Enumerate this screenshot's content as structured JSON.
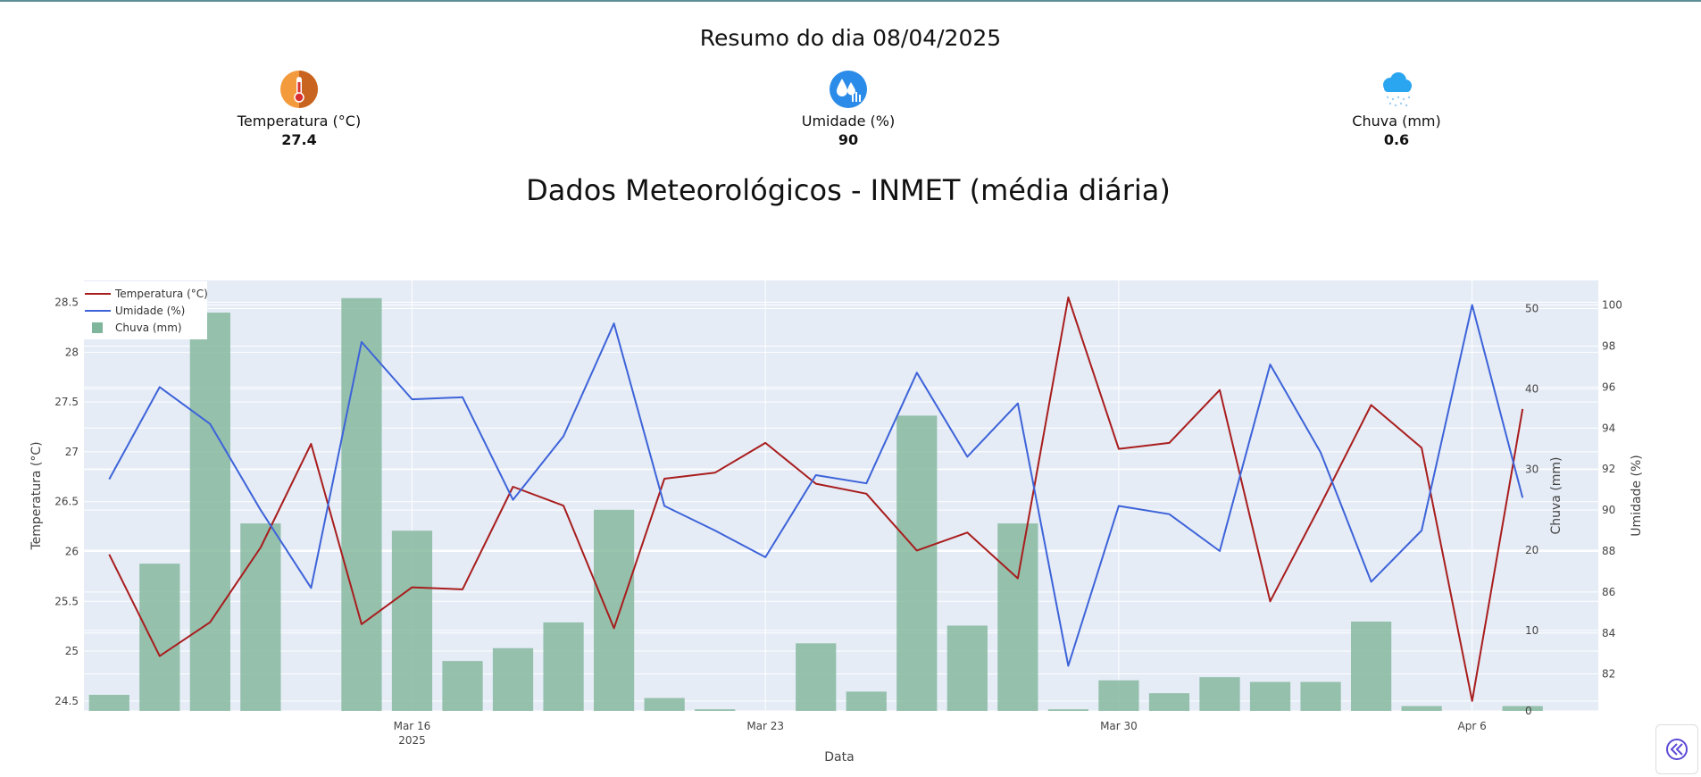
{
  "summary": {
    "title": "Resumo do dia 08/04/2025",
    "metrics": [
      {
        "label": "Temperatura (°C)",
        "value": "27.4",
        "icon": "thermometer-icon"
      },
      {
        "label": "Umidade (%)",
        "value": "90",
        "icon": "humidity-drops-icon"
      },
      {
        "label": "Chuva (mm)",
        "value": "0.6",
        "icon": "rain-cloud-icon"
      }
    ]
  },
  "chart_data": {
    "type": "line",
    "title": "Dados Meteorológicos - INMET (média diária)",
    "xlabel": "Data",
    "x": [
      "2025-03-10",
      "2025-03-11",
      "2025-03-12",
      "2025-03-13",
      "2025-03-14",
      "2025-03-15",
      "2025-03-16",
      "2025-03-17",
      "2025-03-18",
      "2025-03-19",
      "2025-03-20",
      "2025-03-21",
      "2025-03-22",
      "2025-03-23",
      "2025-03-24",
      "2025-03-25",
      "2025-03-26",
      "2025-03-27",
      "2025-03-28",
      "2025-03-29",
      "2025-03-30",
      "2025-03-31",
      "2025-04-01",
      "2025-04-02",
      "2025-04-03",
      "2025-04-04",
      "2025-04-05",
      "2025-04-06",
      "2025-04-07",
      "2025-04-08"
    ],
    "x_ticks": [
      {
        "date": "2025-03-16",
        "label": "Mar 16",
        "sublabel": "2025"
      },
      {
        "date": "2025-03-23",
        "label": "Mar 23",
        "sublabel": ""
      },
      {
        "date": "2025-03-30",
        "label": "Mar 30",
        "sublabel": ""
      },
      {
        "date": "2025-04-06",
        "label": "Apr 6",
        "sublabel": ""
      }
    ],
    "axes": {
      "temperature": {
        "label": "Temperatura (°C)",
        "range": [
          24.4,
          28.72
        ],
        "ticks": [
          "24.5",
          "25",
          "25.5",
          "26",
          "26.5",
          "27",
          "27.5",
          "28",
          "28.5"
        ]
      },
      "rain": {
        "label": "Chuva (mm)",
        "range": [
          0,
          53.5
        ],
        "ticks": [
          "0",
          "10",
          "20",
          "30",
          "40",
          "50"
        ]
      },
      "humidity": {
        "label": "Umidade (%)",
        "range": [
          80.2,
          101.2
        ],
        "ticks": [
          "82",
          "84",
          "86",
          "88",
          "90",
          "92",
          "94",
          "96",
          "98",
          "100"
        ]
      }
    },
    "grid": true,
    "legend": "top-left",
    "series": [
      {
        "name": "Temperatura (°C)",
        "type": "line",
        "axis": "temperature",
        "color": "#a81d1d",
        "values": [
          25.97,
          24.95,
          25.29,
          26.04,
          27.08,
          25.27,
          25.64,
          25.62,
          26.65,
          26.46,
          25.23,
          26.73,
          26.79,
          27.09,
          26.68,
          26.58,
          26.01,
          26.19,
          25.73,
          28.55,
          27.03,
          27.09,
          27.62,
          25.5,
          26.47,
          27.47,
          27.04,
          24.5,
          27.43,
          null
        ]
      },
      {
        "name": "Umidade (%)",
        "type": "line",
        "axis": "humidity",
        "color": "#3d63d9",
        "values": [
          91.5,
          96.0,
          94.2,
          90.0,
          86.2,
          98.2,
          95.4,
          95.5,
          90.5,
          93.6,
          99.1,
          90.2,
          89.0,
          87.7,
          91.7,
          91.3,
          96.7,
          92.6,
          95.2,
          82.4,
          90.2,
          89.8,
          88.0,
          97.1,
          92.8,
          86.5,
          89.0,
          100.0,
          90.6,
          null
        ]
      },
      {
        "name": "Chuva (mm)",
        "type": "bar",
        "axis": "rain",
        "color": "#7fb59a",
        "values": [
          2.0,
          18.3,
          49.5,
          23.3,
          0,
          51.3,
          22.4,
          6.2,
          7.8,
          11.0,
          25.0,
          1.6,
          0.2,
          0,
          8.4,
          2.4,
          36.7,
          10.6,
          23.3,
          0.2,
          3.8,
          2.2,
          4.2,
          3.6,
          3.6,
          11.1,
          0.6,
          0,
          0.6,
          null
        ]
      }
    ]
  }
}
